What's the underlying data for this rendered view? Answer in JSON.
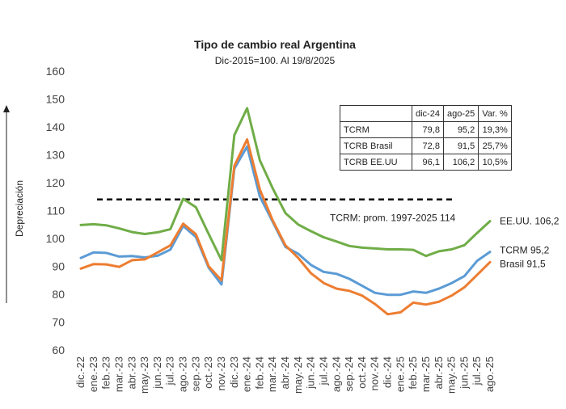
{
  "chart_data": {
    "type": "line",
    "title": "Tipo de cambio real Argentina",
    "subtitle": "Dic-2015=100. Al 19/8/2025",
    "ylabel": "Depreciación",
    "ylim": [
      60,
      160
    ],
    "yticks": [
      "160",
      "150",
      "140",
      "130",
      "120",
      "110",
      "100",
      "90",
      "80",
      "70",
      "60"
    ],
    "grid": false,
    "categories": [
      "dic.-22",
      "ene.-23",
      "feb.-23",
      "mar.-23",
      "abr.-23",
      "may.-23",
      "jun.-23",
      "jul.-23",
      "ago.-23",
      "sep.-23",
      "oct.-23",
      "nov.-23",
      "dic.-23",
      "ene.-24",
      "feb.-24",
      "mar.-24",
      "abr.-24",
      "may.-24",
      "jun.-24",
      "jul.-24",
      "ago.-24",
      "sep.-24",
      "oct.-24",
      "nov.-24",
      "dic.-24",
      "ene.-25",
      "feb.-25",
      "mar.-25",
      "abr.-25",
      "may.-25",
      "jun.-25",
      "jul.-25",
      "ago.-25"
    ],
    "series": [
      {
        "key": "eeuu",
        "color": "#70ad47",
        "values": [
          104.8,
          105.1,
          104.7,
          103.6,
          102.3,
          101.6,
          102.2,
          103.3,
          114.2,
          111.2,
          101.6,
          92.2,
          137.0,
          146.7,
          128.0,
          118.0,
          109.1,
          105.0,
          102.6,
          100.4,
          98.9,
          97.3,
          96.7,
          96.4,
          96.1,
          96.1,
          95.9,
          93.7,
          95.4,
          96.1,
          97.6,
          102.0,
          106.2
        ]
      },
      {
        "key": "tcrm",
        "color": "#5b9bd5",
        "values": [
          93.0,
          95.0,
          94.8,
          93.5,
          93.7,
          93.2,
          93.8,
          96.0,
          104.5,
          100.5,
          89.5,
          83.5,
          125.0,
          133.0,
          115.0,
          106.0,
          97.0,
          94.5,
          90.5,
          88.0,
          87.3,
          85.5,
          83.0,
          80.5,
          79.8,
          79.8,
          81.0,
          80.5,
          82.0,
          84.0,
          86.5,
          92.0,
          95.2
        ]
      },
      {
        "key": "brasil",
        "color": "#ed7d31",
        "values": [
          89.2,
          90.8,
          90.7,
          89.8,
          92.2,
          92.5,
          95.0,
          97.5,
          105.3,
          101.5,
          90.0,
          85.0,
          126.0,
          135.5,
          117.5,
          106.5,
          97.5,
          93.0,
          87.5,
          84.0,
          82.0,
          81.2,
          79.5,
          76.5,
          72.8,
          73.5,
          77.0,
          76.3,
          77.3,
          79.5,
          82.5,
          87.0,
          91.5
        ]
      }
    ],
    "series_labels": {
      "eeuu": "EE.UU. 106,2",
      "tcrm": "TCRM 95,2",
      "brasil": "Brasil 91,5"
    },
    "reference_line": {
      "value": 114,
      "label": "TCRM: prom. 1997-2025 114",
      "color": "#000000"
    },
    "table": {
      "headers": [
        "",
        "dic-24",
        "ago-25",
        "Var. %"
      ],
      "rows": [
        [
          "TCRM",
          "79,8",
          "95,2",
          "19,3%"
        ],
        [
          "TCRB Brasil",
          "72,8",
          "91,5",
          "25,7%"
        ],
        [
          "TCRB EE.UU",
          "96,1",
          "106,2",
          "10,5%"
        ]
      ]
    }
  }
}
